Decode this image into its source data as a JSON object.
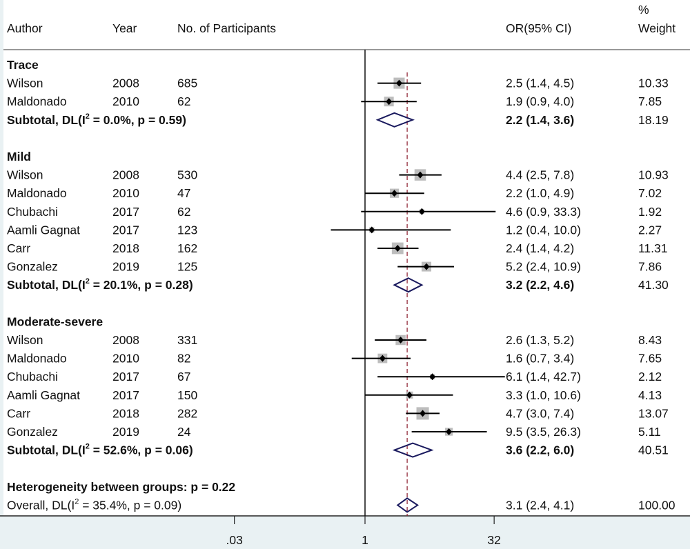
{
  "chart_data": {
    "type": "forest",
    "scale": "log",
    "headers": {
      "author": "Author",
      "year": "Year",
      "participants": "No. of Participants",
      "or": "OR(95% CI)",
      "weight_top": "%",
      "weight_bottom": "Weight"
    },
    "x_ticks": [
      {
        "value": 0.03,
        "label": ".03"
      },
      {
        "value": 1,
        "label": "1"
      },
      {
        "value": 32,
        "label": "32"
      }
    ],
    "null_value": 1,
    "overall_value": 3.1,
    "groups": [
      {
        "name": "Trace",
        "studies": [
          {
            "author": "Wilson",
            "year": "2008",
            "n": "685",
            "or": 2.5,
            "lo": 1.4,
            "hi": 4.5,
            "ci_text": "2.5 (1.4, 4.5)",
            "weight": "10.33"
          },
          {
            "author": "Maldonado",
            "year": "2010",
            "n": "62",
            "or": 1.9,
            "lo": 0.9,
            "hi": 4.0,
            "ci_text": "1.9 (0.9, 4.0)",
            "weight": "7.85"
          }
        ],
        "subtotal": {
          "label_pre": "Subtotal, DL(I",
          "label_post": " = 0.0%, p = 0.59)",
          "sup": "2",
          "or": 2.2,
          "lo": 1.4,
          "hi": 3.6,
          "ci_text": "2.2 (1.4, 3.6)",
          "weight": "18.19"
        }
      },
      {
        "name": "Mild",
        "studies": [
          {
            "author": "Wilson",
            "year": "2008",
            "n": "530",
            "or": 4.4,
            "lo": 2.5,
            "hi": 7.8,
            "ci_text": "4.4 (2.5, 7.8)",
            "weight": "10.93"
          },
          {
            "author": "Maldonado",
            "year": "2010",
            "n": "47",
            "or": 2.2,
            "lo": 1.0,
            "hi": 4.9,
            "ci_text": "2.2 (1.0, 4.9)",
            "weight": "7.02"
          },
          {
            "author": "Chubachi",
            "year": "2017",
            "n": "62",
            "or": 4.6,
            "lo": 0.9,
            "hi": 33.3,
            "ci_text": "4.6 (0.9, 33.3)",
            "weight": "1.92"
          },
          {
            "author": "Aamli Gagnat",
            "year": "2017",
            "n": "123",
            "or": 1.2,
            "lo": 0.4,
            "hi": 10.0,
            "ci_text": "1.2 (0.4, 10.0)",
            "weight": "2.27"
          },
          {
            "author": "Carr",
            "year": "2018",
            "n": "162",
            "or": 2.4,
            "lo": 1.4,
            "hi": 4.2,
            "ci_text": "2.4 (1.4, 4.2)",
            "weight": "11.31"
          },
          {
            "author": "Gonzalez",
            "year": "2019",
            "n": "125",
            "or": 5.2,
            "lo": 2.4,
            "hi": 10.9,
            "ci_text": "5.2 (2.4, 10.9)",
            "weight": "7.86"
          }
        ],
        "subtotal": {
          "label_pre": "Subtotal, DL(I",
          "label_post": " = 20.1%, p = 0.28)",
          "sup": "2",
          "or": 3.2,
          "lo": 2.2,
          "hi": 4.6,
          "ci_text": "3.2 (2.2, 4.6)",
          "weight": "41.30"
        }
      },
      {
        "name": "Moderate-severe",
        "studies": [
          {
            "author": "Wilson",
            "year": "2008",
            "n": "331",
            "or": 2.6,
            "lo": 1.3,
            "hi": 5.2,
            "ci_text": "2.6 (1.3, 5.2)",
            "weight": "8.43"
          },
          {
            "author": "Maldonado",
            "year": "2010",
            "n": "82",
            "or": 1.6,
            "lo": 0.7,
            "hi": 3.4,
            "ci_text": "1.6 (0.7, 3.4)",
            "weight": "7.65"
          },
          {
            "author": "Chubachi",
            "year": "2017",
            "n": "67",
            "or": 6.1,
            "lo": 1.4,
            "hi": 42.7,
            "ci_text": "6.1 (1.4, 42.7)",
            "weight": "2.12"
          },
          {
            "author": "Aamli Gagnat",
            "year": "2017",
            "n": "150",
            "or": 3.3,
            "lo": 1.0,
            "hi": 10.6,
            "ci_text": "3.3 (1.0, 10.6)",
            "weight": "4.13"
          },
          {
            "author": "Carr",
            "year": "2018",
            "n": "282",
            "or": 4.7,
            "lo": 3.0,
            "hi": 7.4,
            "ci_text": "4.7 (3.0, 7.4)",
            "weight": "13.07"
          },
          {
            "author": "Gonzalez",
            "year": "2019",
            "n": "24",
            "or": 9.5,
            "lo": 3.5,
            "hi": 26.3,
            "ci_text": "9.5 (3.5, 26.3)",
            "weight": "5.11"
          }
        ],
        "subtotal": {
          "label_pre": "Subtotal, DL(I",
          "label_post": " = 52.6%, p = 0.06)",
          "sup": "2",
          "or": 3.6,
          "lo": 2.2,
          "hi": 6.0,
          "ci_text": "3.6 (2.2, 6.0)",
          "weight": "40.51"
        }
      }
    ],
    "heterogeneity": "Heterogeneity between groups: p = 0.22",
    "overall": {
      "label_pre": "Overall, DL(I",
      "label_post": " = 35.4%, p = 0.09)",
      "sup": "2",
      "or": 3.1,
      "lo": 2.4,
      "hi": 4.1,
      "ci_text": "3.1 (2.4, 4.1)",
      "weight": "100.00"
    },
    "colors": {
      "diamond": "#1a1a5e",
      "ref_line": "#8b1a2b",
      "square": "#bdbdbd"
    }
  }
}
